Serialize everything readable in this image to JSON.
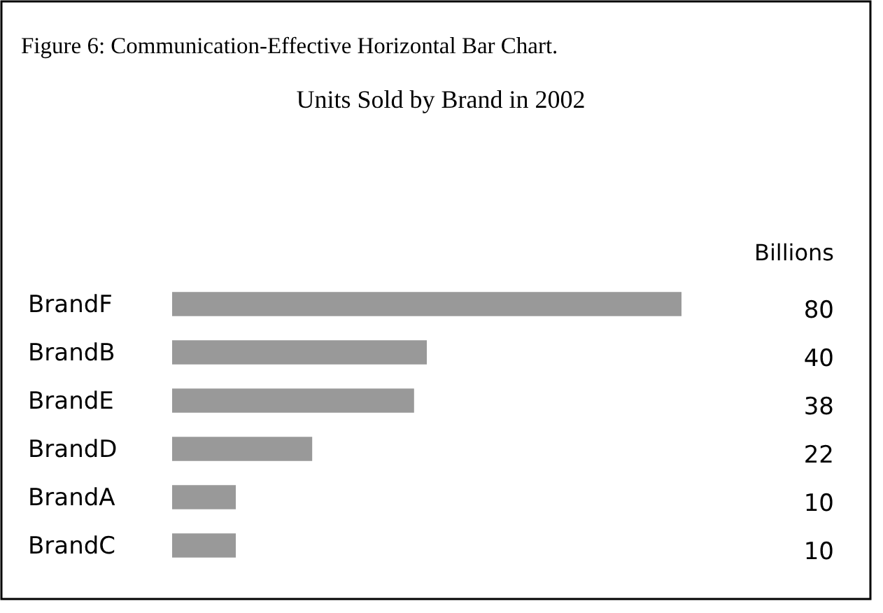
{
  "chart_data": {
    "type": "bar",
    "orientation": "horizontal",
    "title": "Units Sold by Brand in 2002",
    "annotations": [
      "Figure 6: Communication-Effective Horizontal Bar Chart.",
      "Billions"
    ],
    "categories": [
      "BrandF",
      "BrandB",
      "BrandE",
      "BrandD",
      "BrandA",
      "BrandC"
    ],
    "values": [
      80,
      40,
      38,
      22,
      10,
      10
    ],
    "color": "#999999",
    "data_labels": true
  }
}
